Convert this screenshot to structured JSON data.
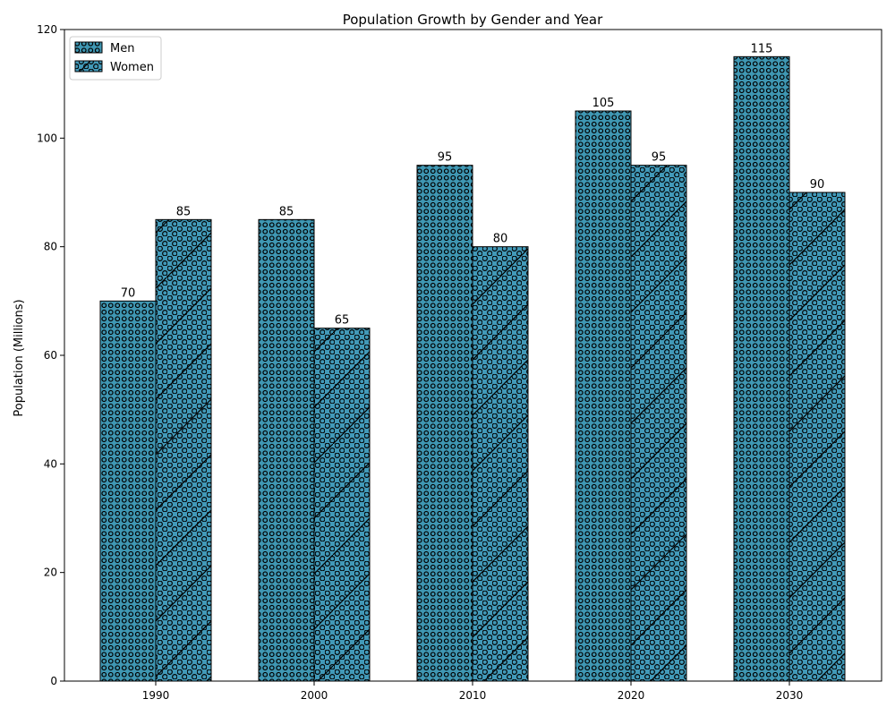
{
  "chart_data": {
    "type": "bar",
    "title": "Population Growth by Gender and Year",
    "xlabel": "",
    "ylabel": "Population (Millions)",
    "categories": [
      "1990",
      "2000",
      "2010",
      "2020",
      "2030"
    ],
    "ylim": [
      0,
      120
    ],
    "yticks": [
      0,
      20,
      40,
      60,
      80,
      100,
      120
    ],
    "grid": false,
    "legend_position": "top-left",
    "series": [
      {
        "name": "Men",
        "values": [
          70,
          85,
          95,
          105,
          115
        ],
        "color": "#3f97b3",
        "pattern": "circles"
      },
      {
        "name": "Women",
        "values": [
          85,
          65,
          80,
          95,
          90
        ],
        "color": "#4299b8",
        "pattern": "diagonal-and-circles"
      }
    ]
  }
}
